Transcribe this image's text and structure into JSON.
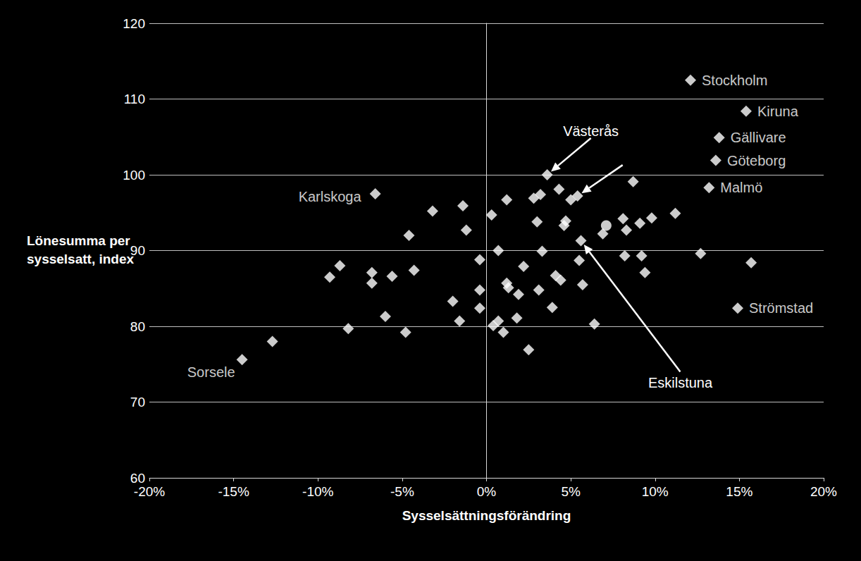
{
  "chart_data": {
    "type": "scatter",
    "x_label": "Sysselsättningsförändring",
    "y_label": "Lönesumma per sysselsatt, index",
    "xlim": [
      -20,
      20
    ],
    "xticks": [
      {
        "value": -20,
        "label": "-20%"
      },
      {
        "value": -15,
        "label": "-15%"
      },
      {
        "value": -10,
        "label": "-10%"
      },
      {
        "value": -5,
        "label": "-5%"
      },
      {
        "value": 0,
        "label": "0%"
      },
      {
        "value": 5,
        "label": "5%"
      },
      {
        "value": 10,
        "label": "10%"
      },
      {
        "value": 15,
        "label": "15%"
      },
      {
        "value": 20,
        "label": "20%"
      }
    ],
    "ylim": [
      60,
      120
    ],
    "yticks": [
      60,
      70,
      80,
      90,
      100,
      110,
      120
    ],
    "grid": true,
    "series": [
      {
        "marker": "diamond",
        "color": "#ffffff",
        "x": [
          12.1,
          15.4,
          13.8,
          13.6,
          13.2,
          -6.6,
          3.6,
          -14.5,
          14.9,
          5.6,
          -12.7,
          -9.3,
          -8.7,
          -8.2,
          -6.8,
          -6.8,
          -5.6,
          -6.0,
          -4.8,
          -4.6,
          -4.3,
          -3.2,
          -2.0,
          -1.6,
          -1.4,
          -1.2,
          -0.4,
          -0.4,
          -0.4,
          0.3,
          0.7,
          0.4,
          0.7,
          1.2,
          1.2,
          1.3,
          1.0,
          1.9,
          1.8,
          2.2,
          2.5,
          2.8,
          3.2,
          3.0,
          3.3,
          3.1,
          3.9,
          4.1,
          4.4,
          4.3,
          4.7,
          4.6,
          5.0,
          5.4,
          5.5,
          5.7,
          6.4,
          6.9,
          8.1,
          8.3,
          8.2,
          8.7,
          9.1,
          9.2,
          9.4,
          9.8,
          11.2,
          12.7,
          15.7
        ],
        "y": [
          112.5,
          108.4,
          104.9,
          101.9,
          98.3,
          97.5,
          100.0,
          75.6,
          82.4,
          91.3,
          78.0,
          86.5,
          88.0,
          79.7,
          87.1,
          85.7,
          86.6,
          81.3,
          79.2,
          92.0,
          87.4,
          95.2,
          83.3,
          80.7,
          95.9,
          92.7,
          88.8,
          84.8,
          82.4,
          94.7,
          90.0,
          80.1,
          80.7,
          96.7,
          85.7,
          85.1,
          79.2,
          84.2,
          81.1,
          87.9,
          76.9,
          96.9,
          97.4,
          93.8,
          89.9,
          84.8,
          82.5,
          86.7,
          86.1,
          98.1,
          93.9,
          93.3,
          96.7,
          97.2,
          88.7,
          85.5,
          80.3,
          92.2,
          94.2,
          92.7,
          89.3,
          99.1,
          93.6,
          89.3,
          87.1,
          94.3,
          94.9,
          89.6,
          88.4
        ],
        "labels": [
          "Stockholm",
          "Kiruna",
          "Gällivare",
          "Göteborg",
          "Malmö",
          "Karlskoga",
          null,
          "Sorsele",
          "Strömstad",
          null,
          null,
          null,
          null,
          null,
          null,
          null,
          null,
          null,
          null,
          null,
          null,
          null,
          null,
          null,
          null,
          null,
          null,
          null,
          null,
          null,
          null,
          null,
          null,
          null,
          null,
          null,
          null,
          null,
          null,
          null,
          null,
          null,
          null,
          null,
          null,
          null,
          null,
          null,
          null,
          null,
          null,
          null,
          null,
          null,
          null,
          null,
          null,
          null,
          null,
          null,
          null,
          null,
          null,
          null,
          null,
          null,
          null,
          null,
          null
        ]
      },
      {
        "marker": "circle",
        "color": "#ffffff",
        "x": [
          7.1
        ],
        "y": [
          93.3
        ]
      }
    ],
    "annotations": [
      {
        "text": "Västerås",
        "points": [
          [
            3.6,
            100.0
          ],
          [
            5.4,
            97.2
          ]
        ]
      },
      {
        "text": "Eskilstuna",
        "points": [
          [
            5.6,
            91.3
          ]
        ]
      }
    ]
  }
}
